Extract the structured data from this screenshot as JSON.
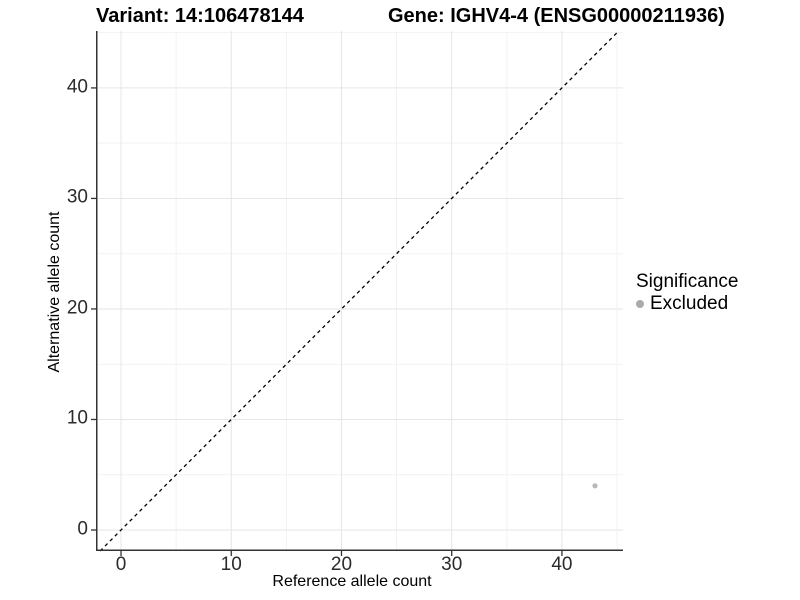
{
  "chart_data": {
    "type": "scatter",
    "title_left": "Variant: 14:106478144",
    "title_right": "Gene: IGHV4-4 (ENSG00000211936)",
    "xlabel": "Reference allele count",
    "ylabel": "Alternative allele count",
    "x_ticks": [
      0,
      10,
      20,
      30,
      40
    ],
    "y_ticks": [
      0,
      10,
      20,
      30,
      40
    ],
    "x_minor_ticks": [
      5,
      15,
      25,
      35,
      45
    ],
    "y_minor_ticks": [
      5,
      15,
      25,
      35,
      45
    ],
    "xlim": [
      -2.27,
      45.54
    ],
    "ylim": [
      -1.9,
      45.15
    ],
    "grid": "major and minor gridlines on white background",
    "reference_line": {
      "kind": "identity y = x",
      "linetype": "dashed",
      "color": "#000000"
    },
    "series": [
      {
        "name": "Excluded",
        "color": "#b8b8b8",
        "points": [
          {
            "x": 43,
            "y": 4
          }
        ]
      }
    ],
    "legend": {
      "title": "Significance",
      "position": "right",
      "entries": [
        {
          "label": "Excluded",
          "color": "#ababab"
        }
      ]
    },
    "colors": {
      "grid_major": "#e6e6e6",
      "grid_minor": "#f2f2f2",
      "axis_line": "#333333",
      "tick_text": "#2b2b2b",
      "dashed_line": "#000000"
    }
  }
}
